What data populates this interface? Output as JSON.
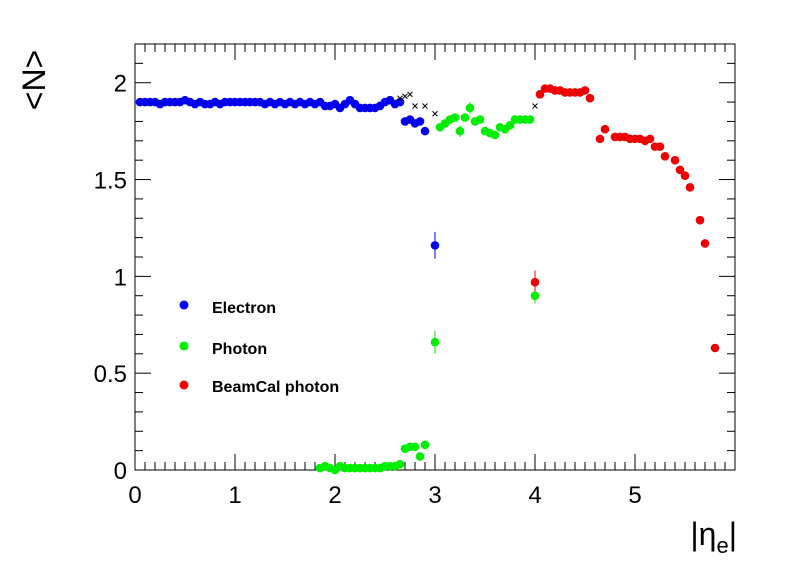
{
  "chart_data": {
    "type": "scatter",
    "title": "",
    "xlabel": "|η",
    "xlabel_sub": "e",
    "xlabel_end": "|",
    "ylabel": "<N>",
    "xlim": [
      0,
      6
    ],
    "ylim": [
      0,
      2.2
    ],
    "xticks": [
      0,
      1,
      2,
      3,
      4,
      5
    ],
    "xtick_labels": [
      "0",
      "1",
      "2",
      "3",
      "4",
      "5"
    ],
    "yticks": [
      0,
      0.5,
      1,
      1.5,
      2
    ],
    "ytick_labels": [
      "0",
      "0.5",
      "1",
      "1.5",
      "2"
    ],
    "grid": false,
    "legend_placement": "center-left",
    "series": [
      {
        "name": "Electron",
        "color": "#0000ee",
        "points": [
          [
            0.05,
            1.9
          ],
          [
            0.1,
            1.9
          ],
          [
            0.15,
            1.9
          ],
          [
            0.2,
            1.9
          ],
          [
            0.25,
            1.89
          ],
          [
            0.3,
            1.9
          ],
          [
            0.35,
            1.9
          ],
          [
            0.4,
            1.9
          ],
          [
            0.45,
            1.9
          ],
          [
            0.5,
            1.91
          ],
          [
            0.55,
            1.9
          ],
          [
            0.6,
            1.89
          ],
          [
            0.65,
            1.9
          ],
          [
            0.7,
            1.89
          ],
          [
            0.75,
            1.89
          ],
          [
            0.8,
            1.9
          ],
          [
            0.85,
            1.89
          ],
          [
            0.9,
            1.9
          ],
          [
            0.95,
            1.9
          ],
          [
            1.0,
            1.9
          ],
          [
            1.05,
            1.9
          ],
          [
            1.1,
            1.9
          ],
          [
            1.15,
            1.9
          ],
          [
            1.2,
            1.9
          ],
          [
            1.25,
            1.9
          ],
          [
            1.3,
            1.89
          ],
          [
            1.35,
            1.9
          ],
          [
            1.4,
            1.89
          ],
          [
            1.45,
            1.9
          ],
          [
            1.5,
            1.89
          ],
          [
            1.55,
            1.9
          ],
          [
            1.6,
            1.89
          ],
          [
            1.65,
            1.9
          ],
          [
            1.7,
            1.89
          ],
          [
            1.75,
            1.9
          ],
          [
            1.8,
            1.89
          ],
          [
            1.85,
            1.9
          ],
          [
            1.9,
            1.88
          ],
          [
            1.95,
            1.88
          ],
          [
            2.0,
            1.89
          ],
          [
            2.05,
            1.87
          ],
          [
            2.1,
            1.89
          ],
          [
            2.15,
            1.91
          ],
          [
            2.2,
            1.89
          ],
          [
            2.25,
            1.87
          ],
          [
            2.3,
            1.87
          ],
          [
            2.35,
            1.87
          ],
          [
            2.4,
            1.87
          ],
          [
            2.45,
            1.88
          ],
          [
            2.5,
            1.9
          ],
          [
            2.55,
            1.91
          ],
          [
            2.6,
            1.89
          ],
          [
            2.65,
            1.9
          ],
          [
            2.7,
            1.8
          ],
          [
            2.75,
            1.81
          ],
          [
            2.8,
            1.79
          ],
          [
            2.85,
            1.8
          ],
          [
            2.9,
            1.75
          ],
          [
            3.0,
            1.16
          ]
        ],
        "errors": [
          [
            3.0,
            0.07
          ],
          [
            2.9,
            0.02
          ],
          [
            2.7,
            0.02
          ],
          [
            2.75,
            0.02
          ],
          [
            2.8,
            0.02
          ]
        ]
      },
      {
        "name": "Photon",
        "color": "#00ee00",
        "points": [
          [
            1.85,
            0.01
          ],
          [
            1.9,
            0.02
          ],
          [
            1.95,
            0.01
          ],
          [
            2.0,
            0.0
          ],
          [
            2.05,
            0.02
          ],
          [
            2.1,
            0.01
          ],
          [
            2.15,
            0.01
          ],
          [
            2.2,
            0.01
          ],
          [
            2.25,
            0.01
          ],
          [
            2.3,
            0.01
          ],
          [
            2.35,
            0.01
          ],
          [
            2.4,
            0.01
          ],
          [
            2.45,
            0.01
          ],
          [
            2.5,
            0.02
          ],
          [
            2.55,
            0.02
          ],
          [
            2.6,
            0.02
          ],
          [
            2.65,
            0.03
          ],
          [
            2.7,
            0.11
          ],
          [
            2.75,
            0.12
          ],
          [
            2.8,
            0.12
          ],
          [
            2.85,
            0.07
          ],
          [
            2.9,
            0.13
          ],
          [
            3.0,
            0.66
          ],
          [
            3.05,
            1.77
          ],
          [
            3.1,
            1.79
          ],
          [
            3.15,
            1.81
          ],
          [
            3.2,
            1.82
          ],
          [
            3.25,
            1.75
          ],
          [
            3.3,
            1.82
          ],
          [
            3.35,
            1.87
          ],
          [
            3.4,
            1.8
          ],
          [
            3.45,
            1.81
          ],
          [
            3.5,
            1.75
          ],
          [
            3.55,
            1.74
          ],
          [
            3.6,
            1.73
          ],
          [
            3.65,
            1.77
          ],
          [
            3.7,
            1.76
          ],
          [
            3.75,
            1.78
          ],
          [
            3.8,
            1.81
          ],
          [
            3.85,
            1.81
          ],
          [
            3.9,
            1.81
          ],
          [
            3.95,
            1.81
          ],
          [
            4.0,
            0.9
          ]
        ],
        "errors": [
          [
            3.0,
            0.06
          ],
          [
            4.0,
            0.04
          ],
          [
            3.25,
            0.03
          ],
          [
            3.35,
            0.03
          ],
          [
            2.85,
            0.02
          ]
        ]
      },
      {
        "name": "BeamCal photon",
        "color": "#ee0000",
        "points": [
          [
            4.0,
            0.97
          ],
          [
            4.05,
            1.94
          ],
          [
            4.1,
            1.97
          ],
          [
            4.15,
            1.97
          ],
          [
            4.2,
            1.96
          ],
          [
            4.25,
            1.96
          ],
          [
            4.3,
            1.95
          ],
          [
            4.35,
            1.95
          ],
          [
            4.4,
            1.95
          ],
          [
            4.45,
            1.95
          ],
          [
            4.5,
            1.96
          ],
          [
            4.55,
            1.92
          ],
          [
            4.65,
            1.71
          ],
          [
            4.7,
            1.76
          ],
          [
            4.8,
            1.72
          ],
          [
            4.85,
            1.72
          ],
          [
            4.9,
            1.72
          ],
          [
            4.95,
            1.71
          ],
          [
            5.0,
            1.71
          ],
          [
            5.05,
            1.71
          ],
          [
            5.1,
            1.7
          ],
          [
            5.15,
            1.71
          ],
          [
            5.2,
            1.67
          ],
          [
            5.25,
            1.67
          ],
          [
            5.3,
            1.62
          ],
          [
            5.4,
            1.6
          ],
          [
            5.45,
            1.55
          ],
          [
            5.5,
            1.52
          ],
          [
            5.55,
            1.46
          ],
          [
            5.65,
            1.29
          ],
          [
            5.7,
            1.17
          ],
          [
            5.8,
            0.63
          ]
        ],
        "errors": [
          [
            4.0,
            0.06
          ],
          [
            4.55,
            0.02
          ]
        ]
      },
      {
        "name": "",
        "color": "#000000",
        "marker": "cross",
        "points": [
          [
            2.65,
            1.92
          ],
          [
            2.7,
            1.93
          ],
          [
            2.75,
            1.94
          ],
          [
            2.8,
            1.88
          ],
          [
            2.9,
            1.88
          ],
          [
            3.0,
            1.84
          ],
          [
            4.0,
            1.88
          ]
        ]
      }
    ]
  }
}
